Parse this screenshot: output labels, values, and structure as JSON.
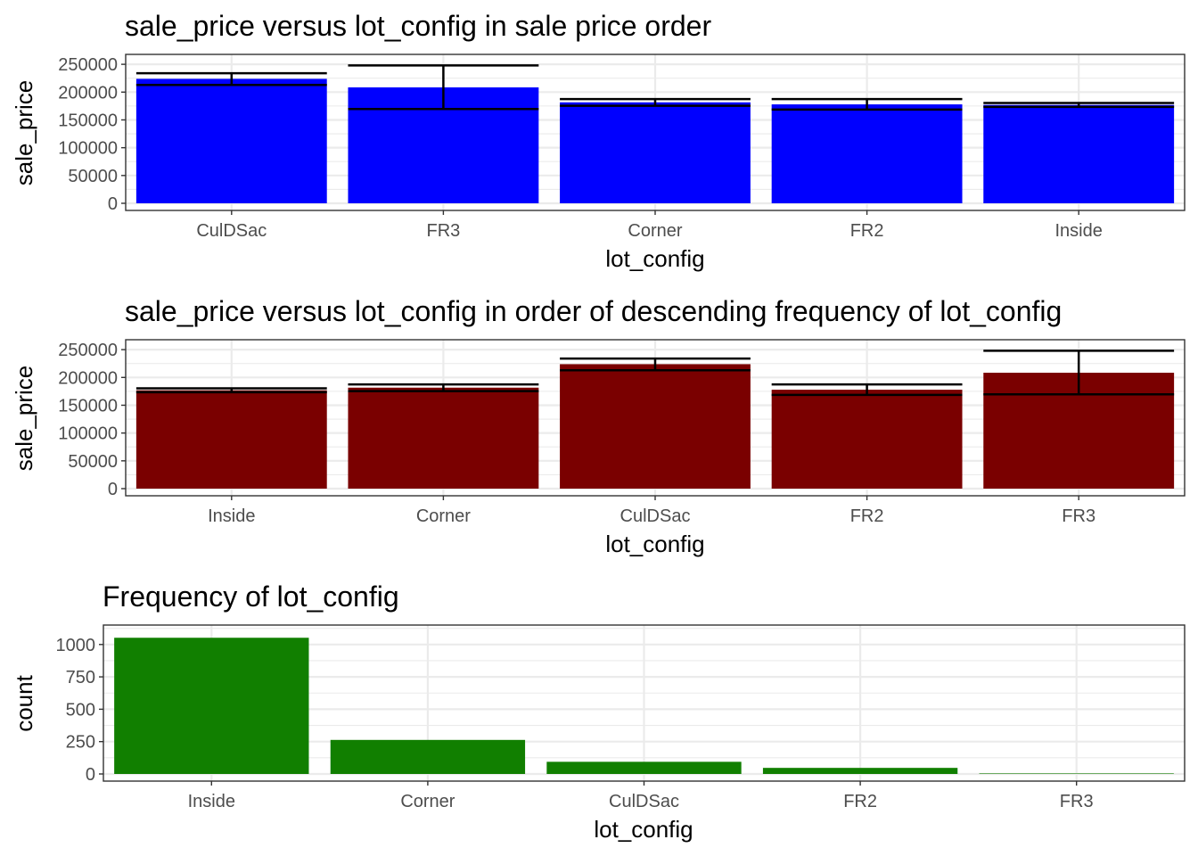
{
  "chart_data": [
    {
      "type": "bar",
      "title": "sale_price versus lot_config in sale price order",
      "xlabel": "lot_config",
      "ylabel": "sale_price",
      "categories": [
        "CulDSac",
        "FR3",
        "Corner",
        "FR2",
        "Inside"
      ],
      "values": [
        223855,
        208475,
        181623,
        177935,
        176938
      ],
      "error_low": [
        213000,
        169500,
        175500,
        168500,
        173500
      ],
      "error_high": [
        234000,
        248000,
        187500,
        187500,
        180500
      ],
      "ylim": [
        0,
        255000
      ],
      "yticks": [
        0,
        50000,
        100000,
        150000,
        200000,
        250000
      ],
      "bar_color": "#0000FF",
      "grid": true
    },
    {
      "type": "bar",
      "title": "sale_price versus lot_config in order of descending frequency of lot_config",
      "xlabel": "lot_config",
      "ylabel": "sale_price",
      "categories": [
        "Inside",
        "Corner",
        "CulDSac",
        "FR2",
        "FR3"
      ],
      "values": [
        176938,
        181623,
        223855,
        177935,
        208475
      ],
      "error_low": [
        173500,
        175500,
        213000,
        168500,
        169500
      ],
      "error_high": [
        180500,
        187500,
        234000,
        187500,
        248000
      ],
      "ylim": [
        0,
        255000
      ],
      "yticks": [
        0,
        50000,
        100000,
        150000,
        200000,
        250000
      ],
      "bar_color": "#7A0000",
      "grid": true
    },
    {
      "type": "bar",
      "title": "Frequency of lot_config",
      "xlabel": "lot_config",
      "ylabel": "count",
      "categories": [
        "Inside",
        "Corner",
        "CulDSac",
        "FR2",
        "FR3"
      ],
      "values": [
        1052,
        263,
        94,
        47,
        4
      ],
      "ylim": [
        0,
        1095
      ],
      "yticks": [
        0,
        250,
        500,
        750,
        1000
      ],
      "bar_color": "#117F00",
      "grid": true
    }
  ]
}
